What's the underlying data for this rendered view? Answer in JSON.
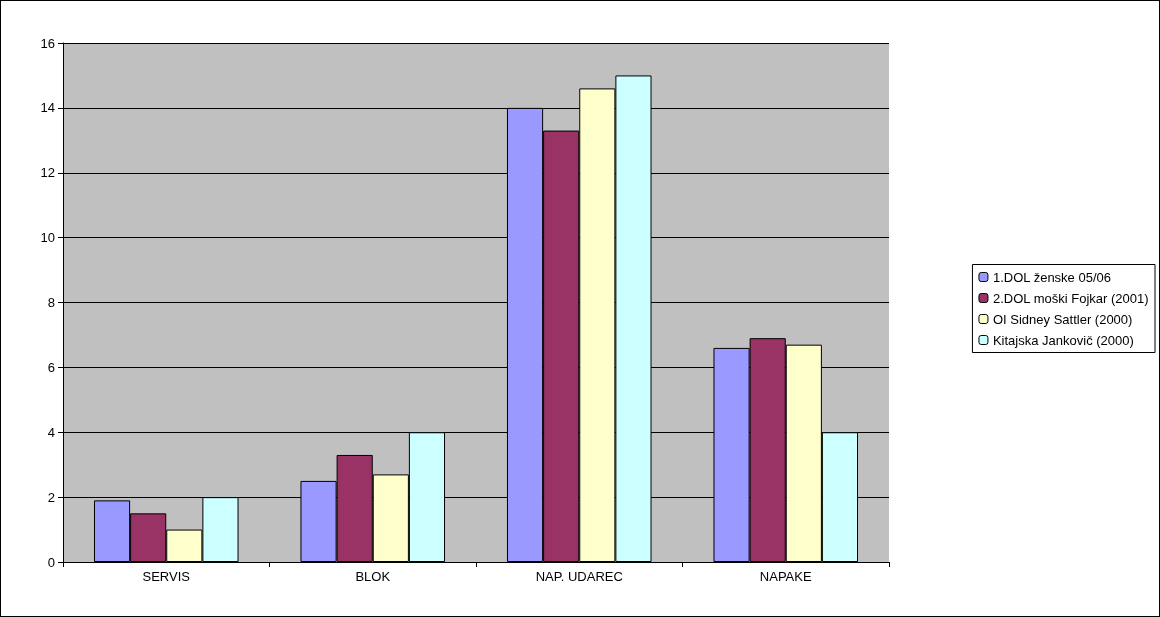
{
  "chart_data": {
    "type": "bar",
    "categories": [
      "SERVIS",
      "BLOK",
      "NAP. UDAREC",
      "NAPAKE"
    ],
    "series": [
      {
        "name": "1.DOL ženske 05/06",
        "color": "#9999ff",
        "values": [
          1.9,
          2.5,
          14,
          6.6
        ]
      },
      {
        "name": "2.DOL moški Fojkar (2001)",
        "color": "#993366",
        "values": [
          1.5,
          3.3,
          13.3,
          6.9
        ]
      },
      {
        "name": "OI Sidney Sattler (2000)",
        "color": "#ffffcc",
        "values": [
          1,
          2.7,
          14.6,
          6.7
        ]
      },
      {
        "name": "Kitajska Jankovič (2000)",
        "color": "#ccffff",
        "values": [
          2,
          4,
          15,
          4
        ]
      }
    ],
    "ylim": [
      0,
      16
    ],
    "yticks": [
      0,
      2,
      4,
      6,
      8,
      10,
      12,
      14,
      16
    ],
    "grid": "y",
    "legend": "right"
  }
}
